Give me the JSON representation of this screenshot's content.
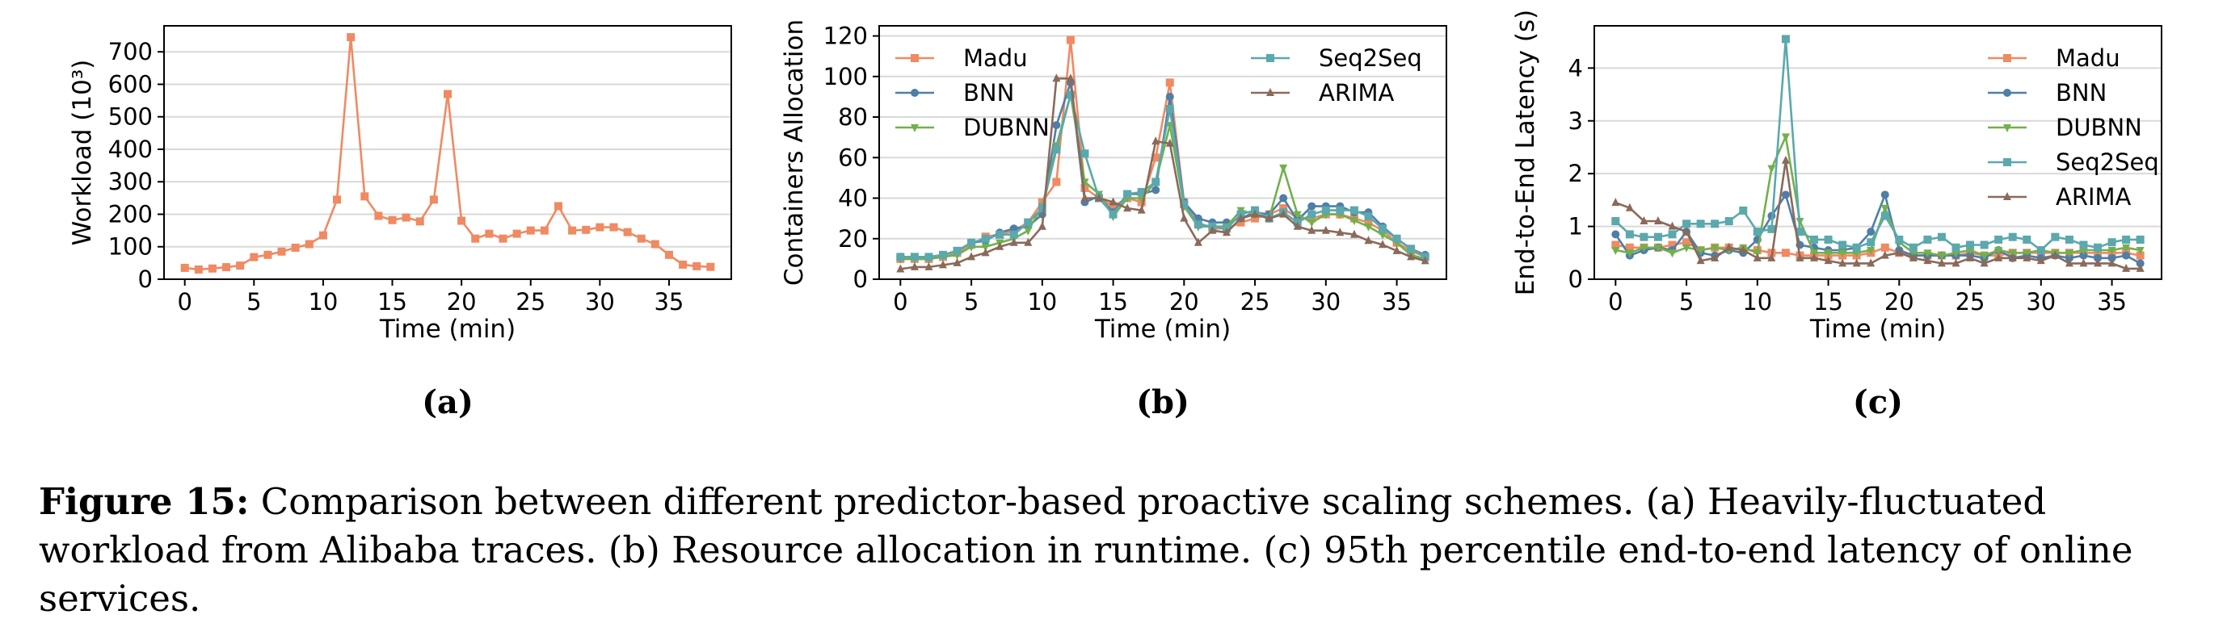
{
  "figure": {
    "caption_label": "Figure 15:",
    "caption_text": "Comparison between different predictor-based proactive scaling schemes. (a) Heavily-fluctuated workload from Alibaba traces. (b) Resource allocation in runtime. (c) 95th percentile end-to-end latency of online services."
  },
  "colors": {
    "Madu": "#ef8a62",
    "BNN": "#4f7ea8",
    "DUBNN": "#72b04c",
    "Seq2Seq": "#5ba8ad",
    "ARIMA": "#8a6a5a"
  },
  "chart_data": [
    {
      "type": "line",
      "panel_label": "(a)",
      "xlabel": "Time (min)",
      "ylabel": "Workload (10³)",
      "xlim": [
        -1.5,
        39.5
      ],
      "ylim": [
        0,
        780
      ],
      "xticks": [
        0,
        5,
        10,
        15,
        20,
        25,
        30,
        35
      ],
      "yticks": [
        0,
        100,
        200,
        300,
        400,
        500,
        600,
        700
      ],
      "grid": "horizontal",
      "legend": "none",
      "x": [
        0,
        1,
        2,
        3,
        4,
        5,
        6,
        7,
        8,
        9,
        10,
        11,
        12,
        13,
        14,
        15,
        16,
        17,
        18,
        19,
        20,
        21,
        22,
        23,
        24,
        25,
        26,
        27,
        28,
        29,
        30,
        31,
        32,
        33,
        34,
        35,
        36,
        37,
        38
      ],
      "series": [
        {
          "marker": "square",
          "color": "#ef8a62",
          "values": [
            35,
            30,
            33,
            37,
            42,
            68,
            75,
            85,
            97,
            108,
            135,
            245,
            745,
            255,
            195,
            182,
            190,
            178,
            245,
            570,
            180,
            125,
            140,
            125,
            140,
            150,
            150,
            225,
            150,
            152,
            160,
            160,
            145,
            125,
            108,
            75,
            45,
            40,
            38
          ]
        }
      ]
    },
    {
      "type": "line",
      "panel_label": "(b)",
      "xlabel": "Time (min)",
      "ylabel": "Containers Allocation",
      "xlim": [
        -1.5,
        38.5
      ],
      "ylim": [
        0,
        125
      ],
      "xticks": [
        0,
        5,
        10,
        15,
        20,
        25,
        30,
        35
      ],
      "yticks": [
        0,
        20,
        40,
        60,
        80,
        100,
        120
      ],
      "grid": "horizontal",
      "legend": "two columns, top",
      "x": [
        0,
        1,
        2,
        3,
        4,
        5,
        6,
        7,
        8,
        9,
        10,
        11,
        12,
        13,
        14,
        15,
        16,
        17,
        18,
        19,
        20,
        21,
        22,
        23,
        24,
        25,
        26,
        27,
        28,
        29,
        30,
        31,
        32,
        33,
        34,
        35,
        36,
        37
      ],
      "series": [
        {
          "name": "Madu",
          "marker": "square",
          "color": "#ef8a62",
          "values": [
            10,
            10,
            10,
            11,
            13,
            17,
            21,
            22,
            24,
            28,
            38,
            48,
            118,
            45,
            40,
            36,
            40,
            38,
            60,
            97,
            38,
            28,
            25,
            25,
            28,
            30,
            32,
            35,
            30,
            30,
            32,
            32,
            30,
            28,
            24,
            18,
            14,
            11
          ]
        },
        {
          "name": "BNN",
          "marker": "circle",
          "color": "#4f7ea8",
          "values": [
            11,
            11,
            11,
            12,
            14,
            18,
            19,
            23,
            25,
            26,
            32,
            76,
            97,
            38,
            41,
            33,
            42,
            42,
            44,
            90,
            38,
            30,
            28,
            28,
            30,
            33,
            32,
            40,
            29,
            36,
            36,
            36,
            33,
            33,
            26,
            20,
            15,
            12
          ]
        },
        {
          "name": "DUBNN",
          "marker": "triangle-down",
          "color": "#72b04c",
          "values": [
            10,
            10,
            10,
            11,
            12,
            16,
            16,
            18,
            20,
            24,
            36,
            66,
            91,
            48,
            42,
            31,
            40,
            40,
            48,
            76,
            36,
            26,
            26,
            26,
            34,
            32,
            30,
            55,
            32,
            28,
            32,
            32,
            29,
            26,
            22,
            18,
            12,
            10
          ]
        },
        {
          "name": "Seq2Seq",
          "marker": "square",
          "color": "#5ba8ad",
          "values": [
            11,
            11,
            11,
            12,
            14,
            18,
            20,
            22,
            22,
            28,
            35,
            64,
            91,
            62,
            40,
            32,
            42,
            43,
            48,
            84,
            37,
            27,
            26,
            25,
            32,
            34,
            30,
            33,
            28,
            32,
            34,
            34,
            34,
            31,
            25,
            20,
            15,
            11
          ]
        },
        {
          "name": "ARIMA",
          "marker": "triangle-up",
          "color": "#8a6a5a",
          "values": [
            5,
            6,
            6,
            7,
            8,
            11,
            13,
            16,
            18,
            18,
            26,
            99,
            99,
            40,
            40,
            38,
            35,
            34,
            68,
            67,
            30,
            18,
            24,
            23,
            30,
            32,
            30,
            32,
            26,
            24,
            24,
            23,
            22,
            19,
            17,
            14,
            11,
            9
          ]
        }
      ]
    },
    {
      "type": "line",
      "panel_label": "(c)",
      "xlabel": "Time (min)",
      "ylabel": "End-to-End Latency (s)",
      "xlim": [
        -1.5,
        38.5
      ],
      "ylim": [
        0,
        4.8
      ],
      "xticks": [
        0,
        5,
        10,
        15,
        20,
        25,
        30,
        35
      ],
      "yticks": [
        0,
        1,
        2,
        3,
        4
      ],
      "grid": "horizontal",
      "legend": "top-right",
      "x": [
        0,
        1,
        2,
        3,
        4,
        5,
        6,
        7,
        8,
        9,
        10,
        11,
        12,
        13,
        14,
        15,
        16,
        17,
        18,
        19,
        20,
        21,
        22,
        23,
        24,
        25,
        26,
        27,
        28,
        29,
        30,
        31,
        32,
        33,
        34,
        35,
        36,
        37
      ],
      "series": [
        {
          "name": "Madu",
          "marker": "square",
          "color": "#ef8a62",
          "values": [
            0.65,
            0.6,
            0.6,
            0.6,
            0.65,
            0.7,
            0.55,
            0.6,
            0.6,
            0.55,
            0.55,
            0.5,
            0.5,
            0.45,
            0.45,
            0.45,
            0.45,
            0.45,
            0.5,
            0.6,
            0.5,
            0.45,
            0.45,
            0.45,
            0.45,
            0.5,
            0.45,
            0.45,
            0.5,
            0.5,
            0.5,
            0.5,
            0.5,
            0.5,
            0.5,
            0.5,
            0.5,
            0.45
          ]
        },
        {
          "name": "BNN",
          "marker": "circle",
          "color": "#4f7ea8",
          "values": [
            0.85,
            0.45,
            0.55,
            0.6,
            0.55,
            0.9,
            0.5,
            0.45,
            0.55,
            0.5,
            0.75,
            1.2,
            1.6,
            0.65,
            0.6,
            0.55,
            0.55,
            0.6,
            0.9,
            1.6,
            0.55,
            0.45,
            0.45,
            0.45,
            0.45,
            0.45,
            0.4,
            0.55,
            0.4,
            0.45,
            0.4,
            0.45,
            0.4,
            0.45,
            0.4,
            0.4,
            0.45,
            0.3
          ]
        },
        {
          "name": "DUBNN",
          "marker": "triangle-down",
          "color": "#72b04c",
          "values": [
            0.55,
            0.5,
            0.6,
            0.6,
            0.5,
            0.6,
            0.55,
            0.6,
            0.55,
            0.6,
            0.5,
            2.1,
            2.7,
            1.1,
            0.5,
            0.5,
            0.5,
            0.5,
            0.55,
            1.35,
            0.7,
            0.5,
            0.5,
            0.45,
            0.5,
            0.55,
            0.45,
            0.55,
            0.5,
            0.5,
            0.55,
            0.5,
            0.5,
            0.55,
            0.55,
            0.55,
            0.6,
            0.55
          ]
        },
        {
          "name": "Seq2Seq",
          "marker": "square",
          "color": "#5ba8ad",
          "values": [
            1.1,
            0.85,
            0.8,
            0.8,
            0.85,
            1.05,
            1.05,
            1.05,
            1.1,
            1.3,
            0.9,
            0.95,
            4.55,
            0.9,
            0.75,
            0.75,
            0.65,
            0.6,
            0.7,
            1.2,
            0.75,
            0.6,
            0.75,
            0.8,
            0.6,
            0.65,
            0.65,
            0.75,
            0.8,
            0.75,
            0.55,
            0.8,
            0.75,
            0.65,
            0.6,
            0.7,
            0.75,
            0.75
          ]
        },
        {
          "name": "ARIMA",
          "marker": "triangle-up",
          "color": "#8a6a5a",
          "values": [
            1.45,
            1.35,
            1.1,
            1.1,
            1.0,
            0.9,
            0.35,
            0.4,
            0.6,
            0.55,
            0.4,
            0.4,
            2.25,
            0.4,
            0.4,
            0.35,
            0.3,
            0.3,
            0.3,
            0.45,
            0.5,
            0.4,
            0.35,
            0.3,
            0.3,
            0.4,
            0.3,
            0.4,
            0.4,
            0.4,
            0.35,
            0.45,
            0.3,
            0.3,
            0.3,
            0.3,
            0.2,
            0.2
          ]
        }
      ]
    }
  ]
}
